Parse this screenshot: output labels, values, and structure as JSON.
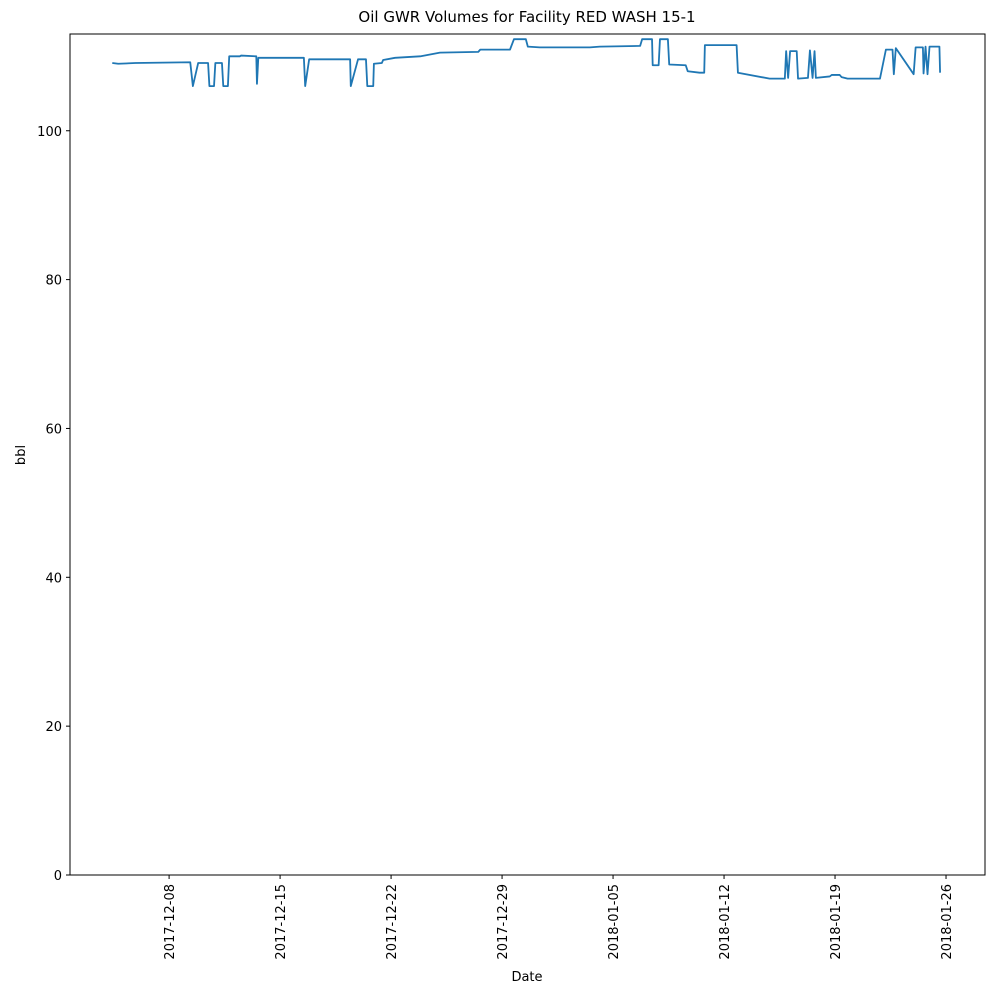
{
  "chart_data": {
    "type": "line",
    "title": "Oil GWR Volumes for Facility RED WASH 15-1",
    "x_label": "Date",
    "y_label": "bbl",
    "color": "#1f77b4",
    "x": [
      "2017-12-04T10:00",
      "2017-12-04T19:00",
      "2017-12-05T21:00",
      "2017-12-09T08:00",
      "2017-12-09T12:00",
      "2017-12-09T20:00",
      "2017-12-10T11:00",
      "2017-12-10T13:00",
      "2017-12-10T20:00",
      "2017-12-10T22:00",
      "2017-12-11T08:00",
      "2017-12-11T10:00",
      "2017-12-11T17:00",
      "2017-12-11T19:00",
      "2017-12-12T11:00",
      "2017-12-12T13:00",
      "2017-12-13T12:00",
      "2017-12-13T13:00",
      "2017-12-13T15:00",
      "2017-12-16T12:00",
      "2017-12-16T14:00",
      "2017-12-16T20:00",
      "2017-12-19T10:00",
      "2017-12-19T11:00",
      "2017-12-19T22:00",
      "2017-12-20T10:00",
      "2017-12-20T12:00",
      "2017-12-20T21:00",
      "2017-12-20T22:00",
      "2017-12-21T10:00",
      "2017-12-21T12:00",
      "2017-12-22T06:00",
      "2017-12-23T20:00",
      "2017-12-25T02:00",
      "2017-12-27T12:00",
      "2017-12-27T15:00",
      "2017-12-29T12:00",
      "2017-12-29T18:00",
      "2017-12-30T12:00",
      "2017-12-30T15:00",
      "2017-12-31T09:00",
      "2018-01-03T13:00",
      "2018-01-04T04:00",
      "2018-01-06T17:00",
      "2018-01-06T20:00",
      "2018-01-07T11:00",
      "2018-01-07T12:00",
      "2018-01-07T21:00",
      "2018-01-07T23:00",
      "2018-01-08T11:00",
      "2018-01-08T13:00",
      "2018-01-09T14:00",
      "2018-01-09T17:00",
      "2018-01-10T11:00",
      "2018-01-10T18:00",
      "2018-01-10T19:00",
      "2018-01-12T19:00",
      "2018-01-12T21:00",
      "2018-01-14T21:00",
      "2018-01-15T20:00",
      "2018-01-15T22:00",
      "2018-01-16T01:00",
      "2018-01-16T04:00",
      "2018-01-16T14:00",
      "2018-01-16T16:00",
      "2018-01-17T07:00",
      "2018-01-17T10:00",
      "2018-01-17T14:00",
      "2018-01-17T17:00",
      "2018-01-17T19:00",
      "2018-01-18T16:00",
      "2018-01-18T19:00",
      "2018-01-19T07:00",
      "2018-01-19T10:00",
      "2018-01-19T19:00",
      "2018-01-21T20:00",
      "2018-01-22T05:00",
      "2018-01-22T15:00",
      "2018-01-22T17:00",
      "2018-01-22T20:00",
      "2018-01-23T23:00",
      "2018-01-24T02:00",
      "2018-01-24T13:00",
      "2018-01-24T14:00",
      "2018-01-24T17:00",
      "2018-01-24T20:00",
      "2018-01-24T23:00",
      "2018-01-25T14:00",
      "2018-01-25T15:00"
    ],
    "values": [
      109.1,
      109.0,
      109.1,
      109.2,
      106.0,
      109.1,
      109.1,
      106.0,
      106.0,
      109.1,
      109.1,
      106.0,
      106.0,
      110.0,
      110.0,
      110.1,
      110.0,
      106.3,
      109.8,
      109.8,
      106.0,
      109.6,
      109.6,
      106.0,
      109.6,
      109.6,
      106.0,
      106.0,
      109.0,
      109.1,
      109.5,
      109.8,
      110.0,
      110.5,
      110.6,
      110.9,
      110.9,
      112.3,
      112.3,
      111.3,
      111.2,
      111.2,
      111.3,
      111.4,
      112.3,
      112.3,
      108.8,
      108.8,
      112.3,
      112.3,
      108.9,
      108.8,
      108.0,
      107.8,
      107.8,
      111.5,
      111.5,
      107.8,
      107.0,
      107.0,
      110.7,
      107.1,
      110.7,
      110.7,
      107.0,
      107.1,
      110.8,
      107.1,
      110.7,
      107.1,
      107.3,
      107.5,
      107.5,
      107.2,
      107.0,
      107.0,
      110.9,
      110.9,
      107.6,
      111.1,
      107.6,
      111.2,
      111.2,
      107.7,
      111.3,
      107.6,
      111.3,
      111.3,
      107.8
    ],
    "xlim": [
      "2017-12-01T18:00",
      "2018-01-28T11:00"
    ],
    "xticks": [
      "2017-12-08",
      "2017-12-15",
      "2017-12-22",
      "2017-12-29",
      "2018-01-05",
      "2018-01-12",
      "2018-01-19",
      "2018-01-26"
    ],
    "ylim": [
      0,
      113
    ],
    "yticks": [
      0,
      20,
      40,
      60,
      80,
      100
    ]
  }
}
